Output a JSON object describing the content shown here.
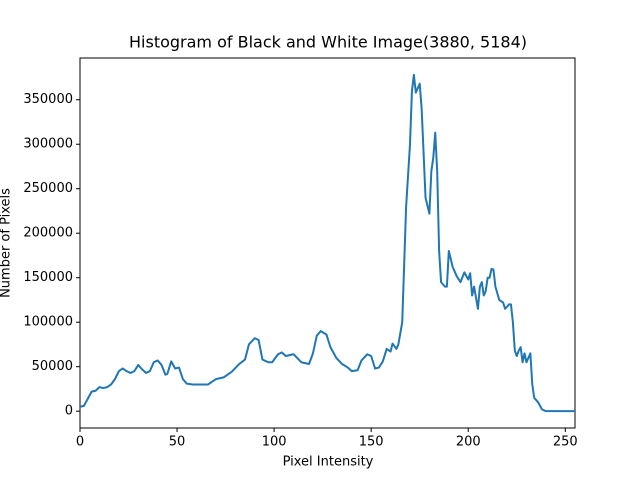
{
  "chart_data": {
    "type": "line",
    "title": "Histogram of Black and White Image(3880, 5184)",
    "xlabel": "Pixel Intensity",
    "ylabel": "Number of Pixels",
    "x": [
      0,
      2,
      4,
      6,
      8,
      10,
      12,
      14,
      16,
      18,
      20,
      22,
      24,
      26,
      28,
      30,
      32,
      34,
      36,
      38,
      40,
      42,
      44,
      45,
      47,
      49,
      51,
      53,
      55,
      58,
      62,
      66,
      70,
      74,
      78,
      82,
      85,
      87,
      90,
      92,
      94,
      97,
      99,
      102,
      104,
      106,
      110,
      114,
      118,
      120,
      122,
      124,
      127,
      129,
      132,
      135,
      138,
      140,
      143,
      145,
      148,
      150,
      152,
      154,
      156,
      158,
      160,
      161,
      163,
      164,
      166,
      168,
      170,
      171,
      172,
      173,
      175,
      176,
      177,
      178,
      180,
      181,
      182,
      183,
      184,
      185,
      186,
      188,
      189,
      190,
      192,
      194,
      196,
      198,
      200,
      201,
      202,
      203,
      205,
      206,
      207,
      208,
      209,
      210,
      211,
      212,
      213,
      214,
      216,
      218,
      219,
      221,
      222,
      223,
      224,
      225,
      226,
      227,
      228,
      229,
      230,
      232,
      233,
      234,
      236,
      238,
      240,
      250,
      255
    ],
    "series": [
      {
        "name": "Pixels",
        "color": "#1f77b4",
        "values": [
          5000,
          6000,
          14000,
          22000,
          23000,
          27000,
          26000,
          27000,
          30000,
          36000,
          45000,
          48000,
          45000,
          43000,
          45000,
          52000,
          47000,
          43000,
          45000,
          55000,
          57000,
          52000,
          41000,
          42000,
          56000,
          48000,
          49000,
          36000,
          31000,
          30000,
          30000,
          30000,
          36000,
          38000,
          44000,
          53000,
          58000,
          75000,
          82000,
          80000,
          58000,
          55000,
          55000,
          64000,
          66000,
          62000,
          64000,
          55000,
          53000,
          65000,
          85000,
          90000,
          86000,
          72000,
          60000,
          53000,
          49000,
          45000,
          46000,
          57000,
          64000,
          62000,
          48000,
          49000,
          56000,
          70000,
          67000,
          76000,
          70000,
          75000,
          100000,
          230000,
          300000,
          360000,
          378000,
          358000,
          368000,
          340000,
          290000,
          240000,
          222000,
          270000,
          285000,
          313000,
          270000,
          180000,
          145000,
          140000,
          140000,
          180000,
          162000,
          152000,
          145000,
          156000,
          148000,
          155000,
          130000,
          140000,
          115000,
          140000,
          145000,
          130000,
          135000,
          150000,
          150000,
          160000,
          159000,
          140000,
          125000,
          122000,
          115000,
          120000,
          120000,
          100000,
          68000,
          62000,
          68000,
          72000,
          55000,
          65000,
          55000,
          65000,
          30000,
          15000,
          10000,
          2000,
          0,
          0,
          0
        ]
      }
    ],
    "xlim": [
      0,
      255
    ],
    "ylim": [
      -18900,
      396900
    ],
    "xticks": [
      0,
      50,
      100,
      150,
      200,
      250
    ],
    "yticks": [
      0,
      50000,
      100000,
      150000,
      200000,
      250000,
      300000,
      350000
    ]
  }
}
